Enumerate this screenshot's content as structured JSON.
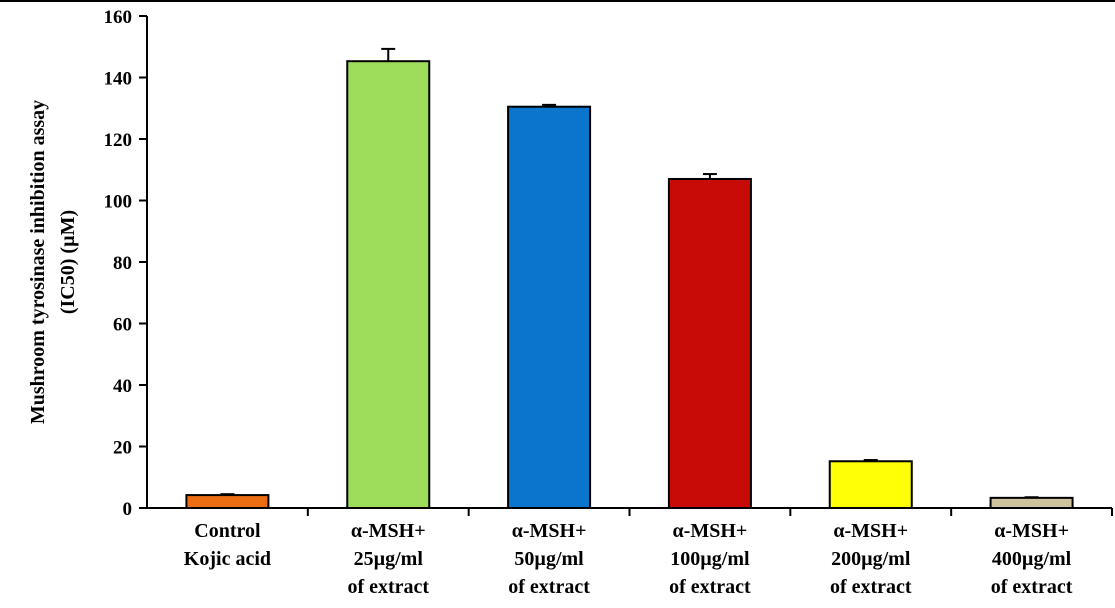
{
  "chart_data": {
    "type": "bar",
    "ylabel_lines": [
      "Mushroom tyrosinase inhibition assay",
      "(IC50) (µM)"
    ],
    "ylim": [
      0,
      160
    ],
    "yticks": [
      0,
      20,
      40,
      60,
      80,
      100,
      120,
      140,
      160
    ],
    "grid": false,
    "categories": [
      [
        "Control",
        "Kojic acid"
      ],
      [
        "α-MSH+",
        "25µg/ml",
        "of extract"
      ],
      [
        "α-MSH+",
        "50µg/ml",
        "of extract"
      ],
      [
        "α-MSH+",
        "100µg/ml",
        "of extract"
      ],
      [
        "α-MSH+",
        "200µg/ml",
        "of extract"
      ],
      [
        "α-MSH+",
        "400µg/ml",
        "of extract"
      ]
    ],
    "values": [
      4.2,
      145.3,
      130.5,
      107.0,
      15.2,
      3.3
    ],
    "errors": [
      0.3,
      4.0,
      0.6,
      1.6,
      0.4,
      0.2
    ],
    "colors": [
      "#ed6d12",
      "#9edc5c",
      "#0b74cc",
      "#c80b07",
      "#ffff06",
      "#cfc39e"
    ]
  }
}
